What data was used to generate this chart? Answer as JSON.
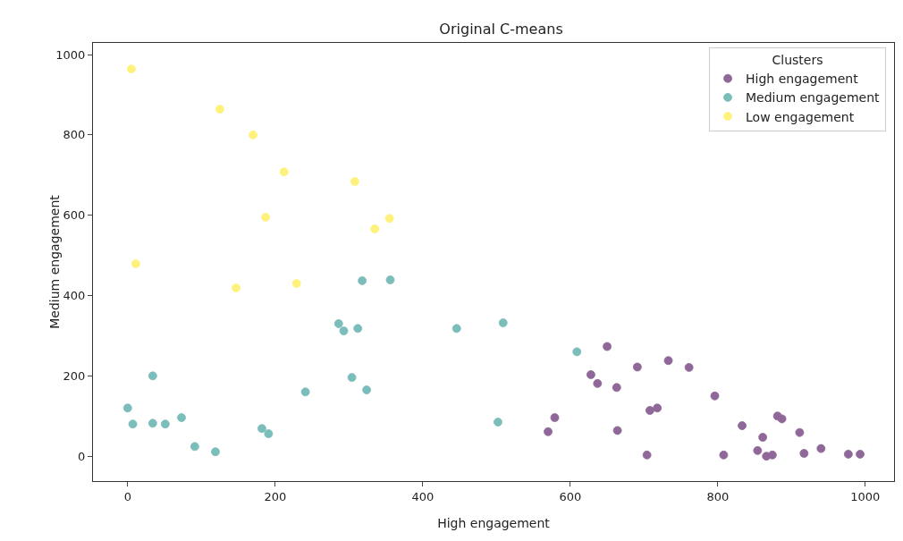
{
  "chart_data": {
    "type": "scatter",
    "title": "Original C-means",
    "xlabel": "High engagement",
    "ylabel": "Medium engagement",
    "legend_title": "Clusters",
    "legend": "top right",
    "grid": false,
    "marker": "circle",
    "xlim": [
      -47,
      1039
    ],
    "ylim": [
      -62,
      1029
    ],
    "xticks": [
      0,
      200,
      400,
      600,
      800,
      1000
    ],
    "yticks": [
      0,
      200,
      400,
      600,
      800,
      1000
    ],
    "series": [
      {
        "name": "High engagement",
        "color": "#8f6798",
        "x": [
          650,
          691,
          733,
          761,
          628,
          637,
          663,
          796,
          708,
          718,
          579,
          570,
          664,
          881,
          887,
          833,
          861,
          911,
          704,
          808,
          854,
          866,
          874,
          917,
          940,
          977,
          993
        ],
        "values": [
          273,
          222,
          238,
          221,
          203,
          181,
          171,
          150,
          114,
          120,
          96,
          61,
          64,
          100,
          93,
          76,
          47,
          59,
          3,
          3,
          14,
          0,
          3,
          7,
          19,
          5,
          5
        ]
      },
      {
        "name": "Medium engagement",
        "color": "#7abdba",
        "x": [
          318,
          356,
          286,
          293,
          312,
          446,
          509,
          34,
          304,
          324,
          241,
          0,
          7,
          34,
          51,
          73,
          91,
          119,
          182,
          191,
          502,
          609
        ],
        "values": [
          437,
          439,
          330,
          312,
          318,
          318,
          332,
          200,
          196,
          165,
          160,
          120,
          80,
          82,
          80,
          96,
          24,
          11,
          69,
          56,
          85,
          260
        ]
      },
      {
        "name": "Low engagement",
        "color": "#fef17c",
        "x": [
          5,
          125,
          170,
          212,
          308,
          187,
          355,
          335,
          11,
          147,
          229
        ],
        "values": [
          964,
          864,
          800,
          708,
          684,
          595,
          592,
          566,
          479,
          419,
          430
        ]
      }
    ]
  }
}
